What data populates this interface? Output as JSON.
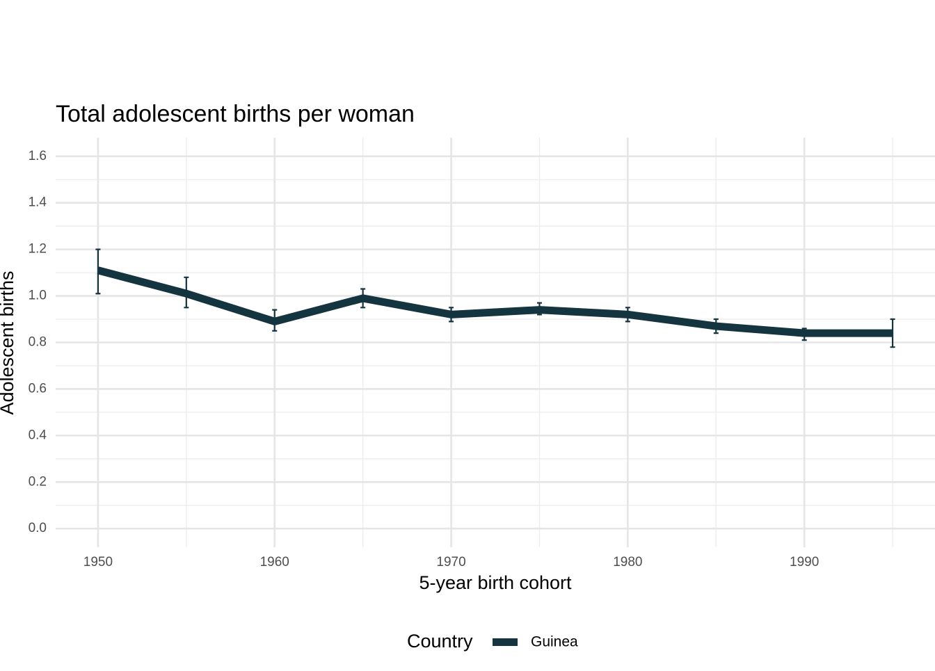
{
  "chart_data": {
    "type": "line",
    "title": "Total adolescent births per woman",
    "xlabel": "5-year birth cohort",
    "ylabel": "Adolescent births",
    "legend_title": "Country",
    "legend_position": "bottom",
    "grid": true,
    "x": [
      1950,
      1955,
      1960,
      1965,
      1970,
      1975,
      1980,
      1985,
      1990,
      1995
    ],
    "series": [
      {
        "name": "Guinea",
        "color": "#14343f",
        "values": [
          1.11,
          1.01,
          0.89,
          0.99,
          0.92,
          0.94,
          0.92,
          0.87,
          0.84,
          0.84
        ],
        "lower": [
          1.01,
          0.95,
          0.85,
          0.95,
          0.89,
          0.92,
          0.89,
          0.84,
          0.81,
          0.78
        ],
        "upper": [
          1.2,
          1.08,
          0.94,
          1.03,
          0.95,
          0.97,
          0.95,
          0.9,
          0.86,
          0.9
        ]
      }
    ],
    "xlim": [
      1947.6,
      1997.4
    ],
    "ylim": [
      -0.08,
      1.68
    ],
    "xticks": [
      1950,
      1960,
      1970,
      1980,
      1990
    ],
    "xminorticks": [
      1955,
      1965,
      1975,
      1985,
      1995
    ],
    "yticks": [
      {
        "value": 0,
        "label": "0.0"
      },
      0.2,
      0.4,
      0.6,
      0.8,
      {
        "value": 1,
        "label": "1.0"
      },
      1.2,
      1.4,
      1.6
    ],
    "yminorticks": [
      0.1,
      0.3,
      0.5,
      0.7,
      0.9,
      1.1,
      1.3,
      1.5
    ]
  }
}
